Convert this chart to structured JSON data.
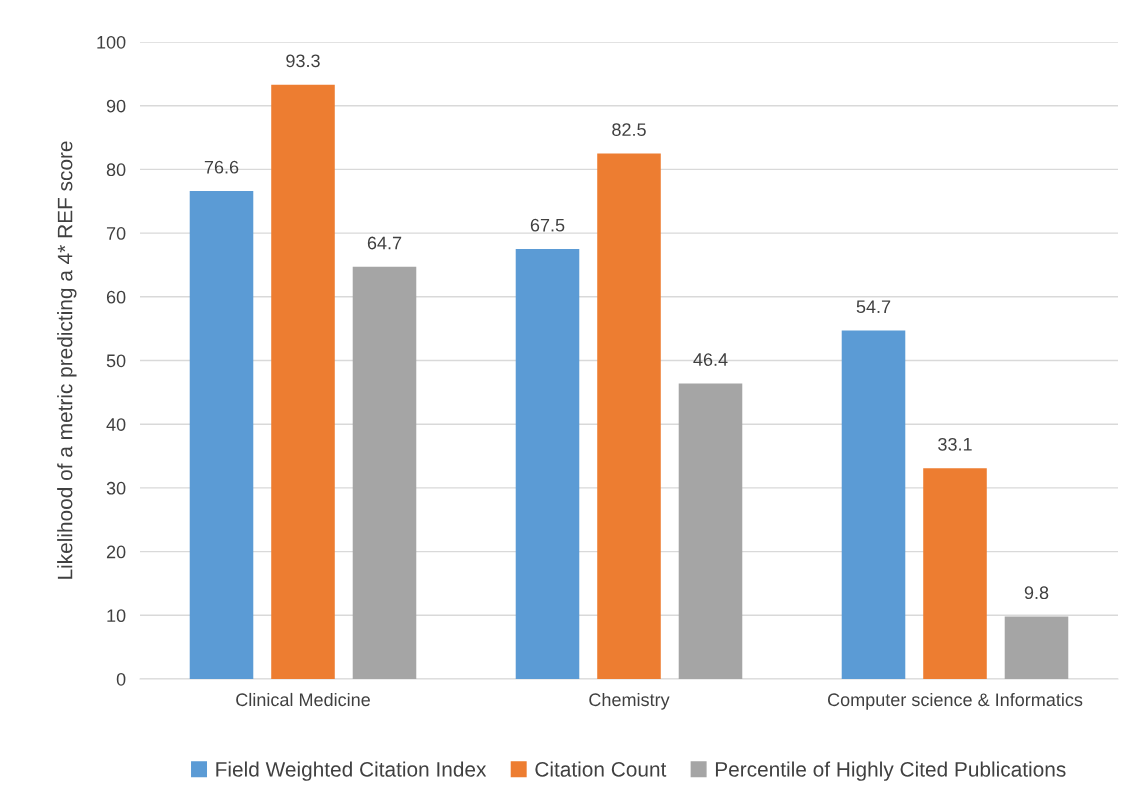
{
  "chart_data": {
    "type": "bar",
    "ylabel": "Likelihood of a metric predicting a 4* REF score",
    "categories": [
      "Clinical Medicine",
      "Chemistry",
      "Computer science & Informatics"
    ],
    "series": [
      {
        "name": "Field Weighted Citation Index",
        "color": "#5b9bd5",
        "values": [
          76.6,
          67.5,
          54.7
        ]
      },
      {
        "name": "Citation Count",
        "color": "#ed7d31",
        "values": [
          93.3,
          82.5,
          33.1
        ]
      },
      {
        "name": "Percentile of Highly Cited Publications",
        "color": "#a5a5a5",
        "values": [
          64.7,
          46.4,
          9.8
        ]
      }
    ],
    "ylim": [
      0,
      100
    ],
    "yticks": [
      0,
      10,
      20,
      30,
      40,
      50,
      60,
      70,
      80,
      90,
      100
    ],
    "grid": "y",
    "legend": "bottom",
    "data_labels": true
  }
}
